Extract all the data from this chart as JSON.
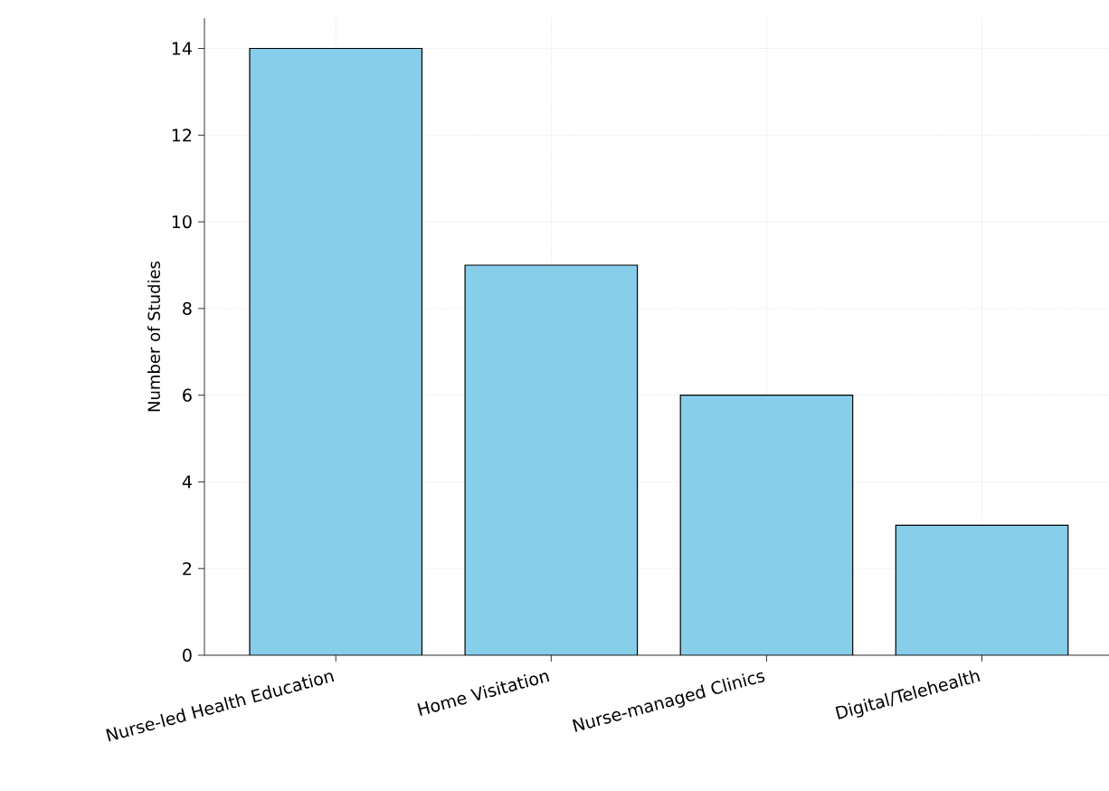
{
  "chart_data": {
    "type": "bar",
    "ylabel": "Number of Studies",
    "categories": [
      "Nurse-led Health Education",
      "Home Visitation",
      "Nurse-managed Clinics",
      "Digital/Telehealth"
    ],
    "values": [
      14,
      9,
      6,
      3
    ],
    "color": "#87ceeb",
    "ylim": [
      0,
      14.7
    ],
    "yticks": [
      0,
      2,
      4,
      6,
      8,
      10,
      12,
      14
    ],
    "grid": true
  }
}
